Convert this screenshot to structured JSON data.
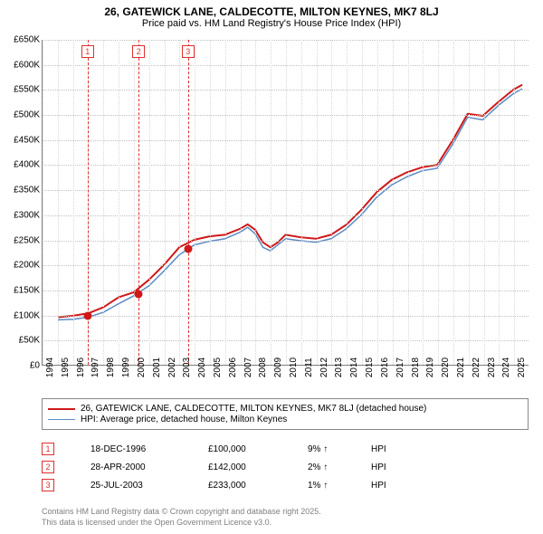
{
  "title": "26, GATEWICK LANE, CALDECOTTE, MILTON KEYNES, MK7 8LJ",
  "subtitle": "Price paid vs. HM Land Registry's House Price Index (HPI)",
  "chart": {
    "type": "line",
    "background_color": "#ffffff",
    "grid_color_h": "#c0c0c0",
    "grid_color_v": "#d8d8d8",
    "axis_color": "#808080",
    "xlim": [
      1994,
      2026
    ],
    "ylim": [
      0,
      650000
    ],
    "ytick_step": 50000,
    "yticks": [
      "£0",
      "£50K",
      "£100K",
      "£150K",
      "£200K",
      "£250K",
      "£300K",
      "£350K",
      "£400K",
      "£450K",
      "£500K",
      "£550K",
      "£600K",
      "£650K"
    ],
    "xticks": [
      1994,
      1995,
      1996,
      1997,
      1998,
      1999,
      2000,
      2001,
      2002,
      2003,
      2004,
      2005,
      2006,
      2007,
      2008,
      2009,
      2010,
      2011,
      2012,
      2013,
      2014,
      2015,
      2016,
      2017,
      2018,
      2019,
      2020,
      2021,
      2022,
      2023,
      2024,
      2025
    ],
    "label_fontsize": 10,
    "series": [
      {
        "name": "price_paid",
        "label": "26, GATEWICK LANE, CALDECOTTE, MILTON KEYNES, MK7 8LJ (detached house)",
        "color": "#d01818",
        "line_width": 2,
        "x": [
          1995,
          1996,
          1997,
          1998,
          1999,
          2000,
          2001,
          2002,
          2003,
          2004,
          2005,
          2006,
          2007,
          2007.5,
          2008,
          2008.5,
          2009,
          2009.5,
          2010,
          2011,
          2012,
          2013,
          2014,
          2015,
          2016,
          2017,
          2018,
          2019,
          2020,
          2021,
          2022,
          2023,
          2024,
          2025,
          2025.6
        ],
        "y": [
          95000,
          98000,
          103000,
          115000,
          135000,
          145000,
          170000,
          200000,
          235000,
          250000,
          257000,
          260000,
          272000,
          281000,
          270000,
          245000,
          235000,
          245000,
          260000,
          255000,
          252000,
          260000,
          280000,
          310000,
          345000,
          370000,
          385000,
          395000,
          400000,
          448000,
          502000,
          498000,
          525000,
          550000,
          560000
        ]
      },
      {
        "name": "hpi",
        "label": "HPI: Average price, detached house, Milton Keynes",
        "color": "#5b8bc4",
        "line_width": 1.5,
        "x": [
          1995,
          1996,
          1997,
          1998,
          1999,
          2000,
          2001,
          2002,
          2003,
          2004,
          2005,
          2006,
          2007,
          2007.5,
          2008,
          2008.5,
          2009,
          2009.5,
          2010,
          2011,
          2012,
          2013,
          2014,
          2015,
          2016,
          2017,
          2018,
          2019,
          2020,
          2021,
          2022,
          2023,
          2024,
          2025,
          2025.6
        ],
        "y": [
          90000,
          91000,
          95000,
          105000,
          122000,
          138000,
          158000,
          188000,
          220000,
          240000,
          247000,
          252000,
          265000,
          275000,
          262000,
          235000,
          228000,
          240000,
          252000,
          248000,
          245000,
          252000,
          272000,
          300000,
          335000,
          360000,
          376000,
          388000,
          393000,
          440000,
          495000,
          490000,
          518000,
          542000,
          552000
        ]
      }
    ],
    "markers": [
      {
        "n": "1",
        "x": 1996.96,
        "y": 100000
      },
      {
        "n": "2",
        "x": 2000.32,
        "y": 142000
      },
      {
        "n": "3",
        "x": 2003.56,
        "y": 233000
      }
    ]
  },
  "legend": {
    "items": [
      {
        "color": "#d01818",
        "width": 2,
        "label": "26, GATEWICK LANE, CALDECOTTE, MILTON KEYNES, MK7 8LJ (detached house)"
      },
      {
        "color": "#5b8bc4",
        "width": 1.5,
        "label": "HPI: Average price, detached house, Milton Keynes"
      }
    ]
  },
  "transactions": [
    {
      "n": "1",
      "date": "18-DEC-1996",
      "price": "£100,000",
      "pct": "9%",
      "dir": "↑",
      "note": "HPI"
    },
    {
      "n": "2",
      "date": "28-APR-2000",
      "price": "£142,000",
      "pct": "2%",
      "dir": "↑",
      "note": "HPI"
    },
    {
      "n": "3",
      "date": "25-JUL-2003",
      "price": "£233,000",
      "pct": "1%",
      "dir": "↑",
      "note": "HPI"
    }
  ],
  "footer": {
    "line1": "Contains HM Land Registry data © Crown copyright and database right 2025.",
    "line2": "This data is licensed under the Open Government Licence v3.0."
  }
}
